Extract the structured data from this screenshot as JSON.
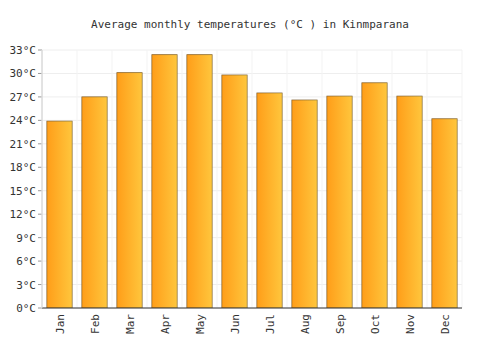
{
  "chart_data": {
    "type": "bar",
    "title": "Average monthly temperatures (°C ) in Kinmparana",
    "categories": [
      "Jan",
      "Feb",
      "Mar",
      "Apr",
      "May",
      "Jun",
      "Jul",
      "Aug",
      "Sep",
      "Oct",
      "Nov",
      "Dec"
    ],
    "values": [
      23.9,
      27.0,
      30.1,
      32.4,
      32.4,
      29.8,
      27.5,
      26.6,
      27.1,
      28.8,
      27.1,
      24.2
    ],
    "color": "#ffa726",
    "ylim": [
      0,
      33
    ],
    "yticks": [
      {
        "value": 0,
        "label": "0°C"
      },
      {
        "value": 3,
        "label": "3°C"
      },
      {
        "value": 6,
        "label": "6°C"
      },
      {
        "value": 9,
        "label": "9°C"
      },
      {
        "value": 12,
        "label": "12°C"
      },
      {
        "value": 15,
        "label": "15°C"
      },
      {
        "value": 18,
        "label": "18°C"
      },
      {
        "value": 21,
        "label": "21°C"
      },
      {
        "value": 24,
        "label": "24°C"
      },
      {
        "value": 27,
        "label": "27°C"
      },
      {
        "value": 30,
        "label": "30°C"
      },
      {
        "value": 33,
        "label": "33°C"
      }
    ],
    "grid": true
  }
}
